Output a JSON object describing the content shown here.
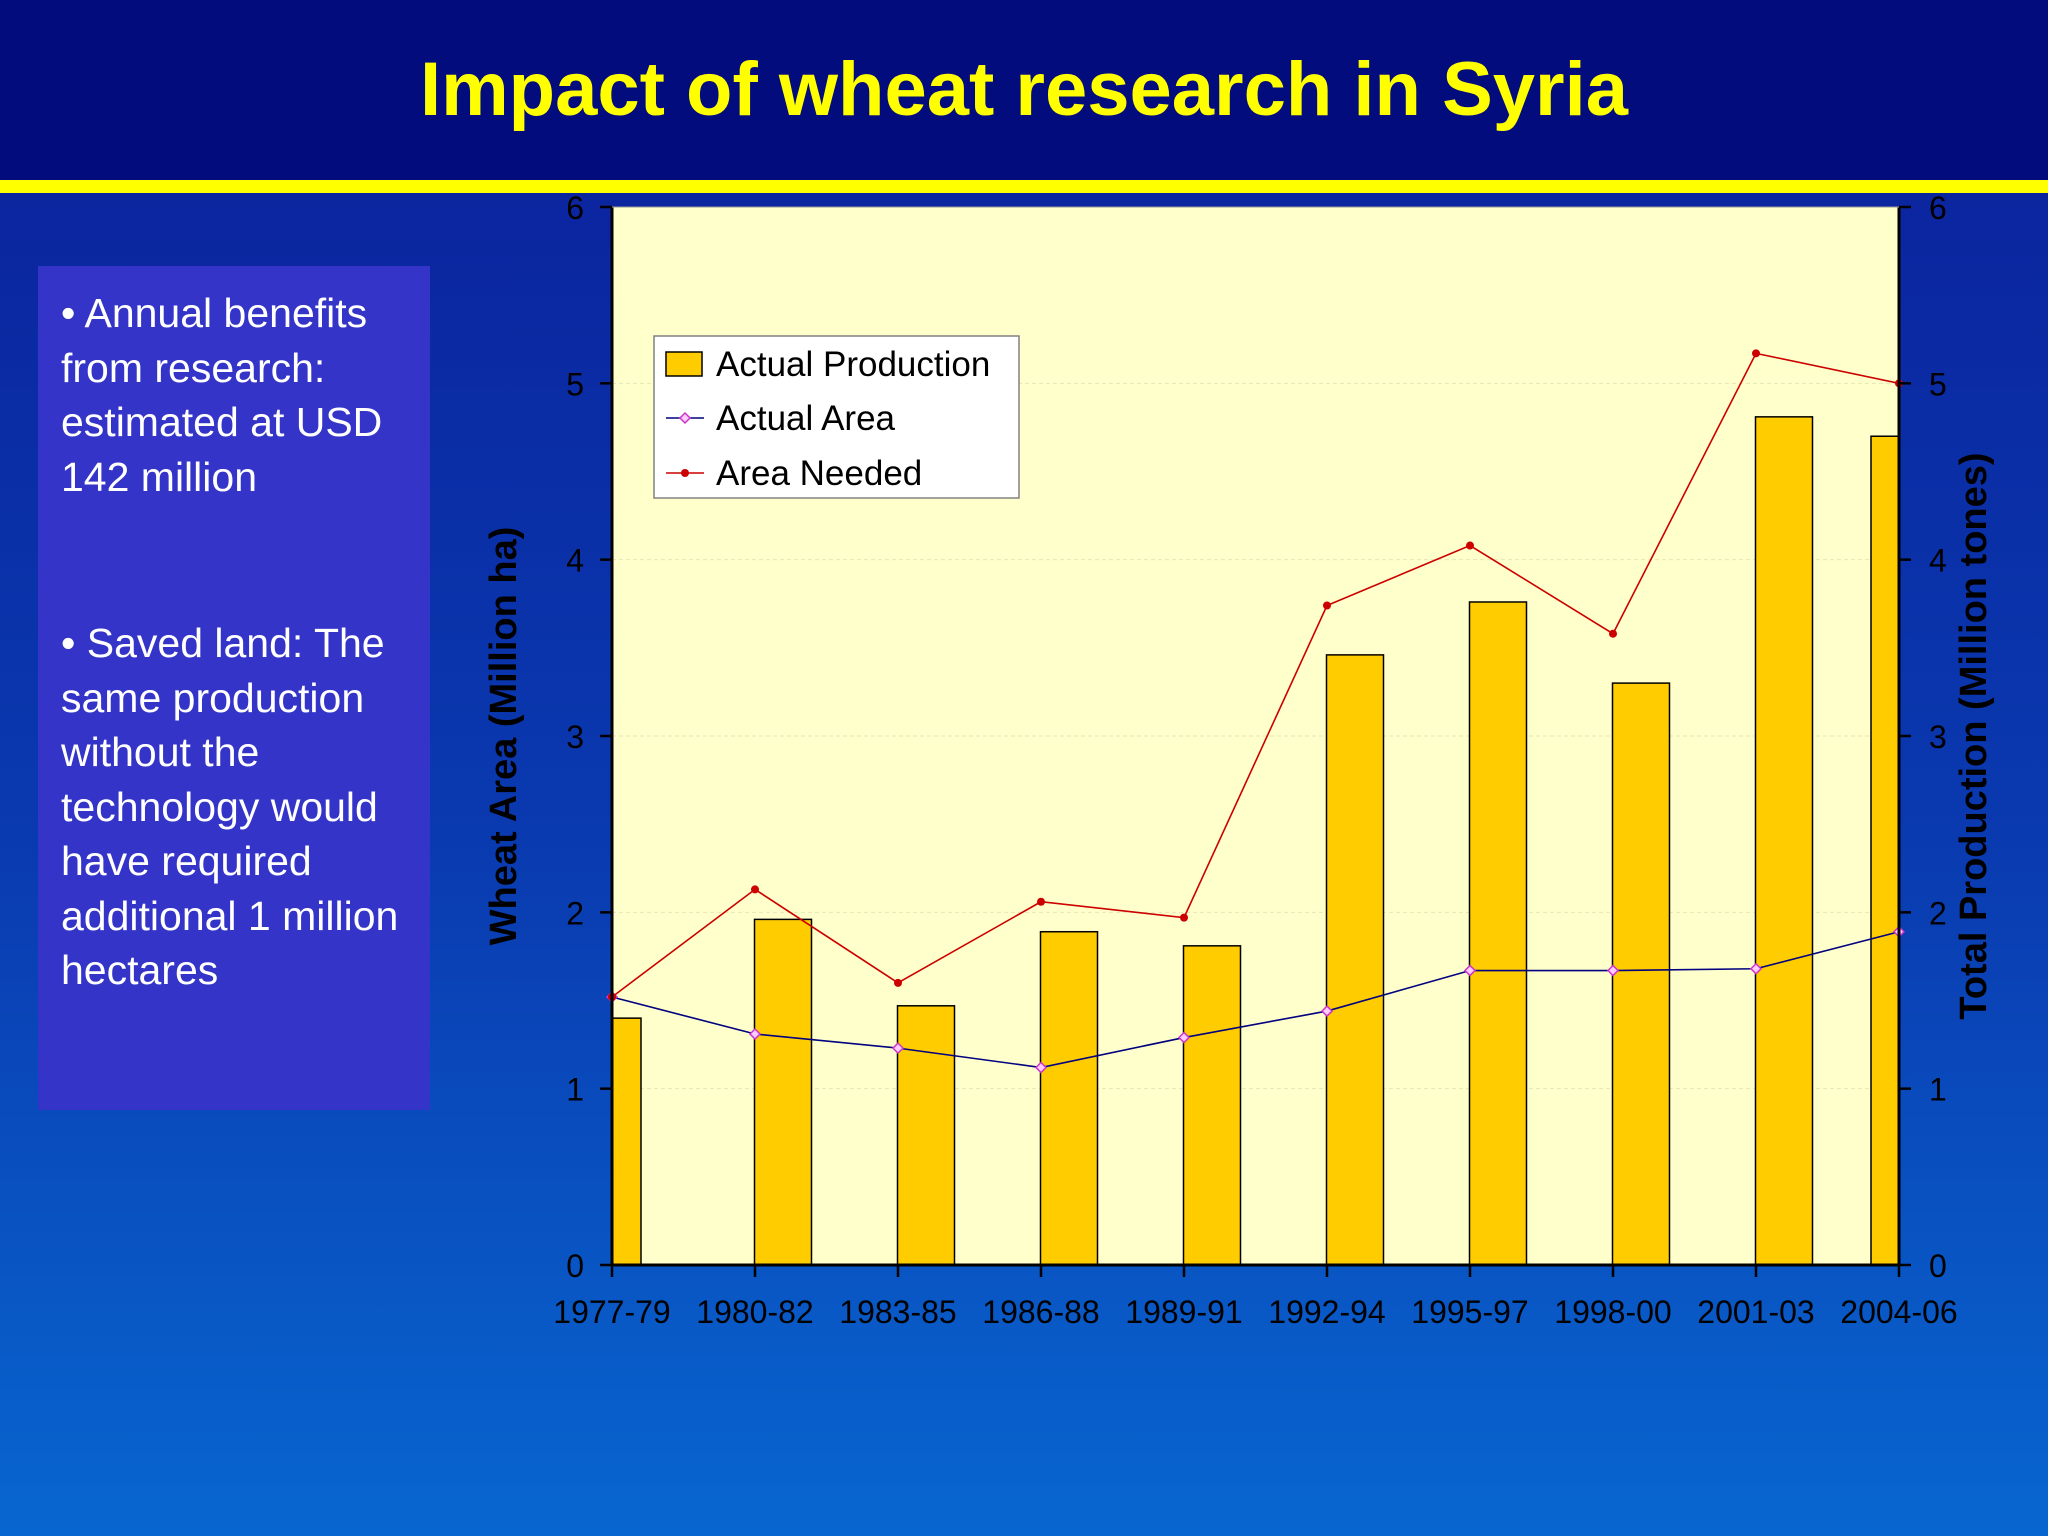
{
  "slide": {
    "title": "Impact of wheat research in Syria",
    "bullets": [
      "• Annual benefits from research: estimated at USD 142 million",
      "• Saved land: The same production without the technology would have required additional 1 million hectares"
    ]
  },
  "colors": {
    "header": "#030c7c",
    "title": "#ffff00",
    "rule": "#ffff00",
    "textbox": "#3434c8",
    "plot_bg": "#ffffcc",
    "bar": "#ffcc00",
    "actual_area_line": "#000080",
    "actual_area_marker": "#cc33cc",
    "area_needed": "#cc0000"
  },
  "chart_data": {
    "type": "bar",
    "categories": [
      "1977-79",
      "1980-82",
      "1983-85",
      "1986-88",
      "1989-91",
      "1992-94",
      "1995-97",
      "1998-00",
      "2001-03",
      "2004-06"
    ],
    "ylabel": "Wheat Area (Million ha)",
    "y2label": "Total Production (Million tones)",
    "ylim": [
      0,
      6
    ],
    "y2lim": [
      0,
      6
    ],
    "yticks": [
      "0",
      "1",
      "2",
      "3",
      "4",
      "5",
      "6"
    ],
    "legend_position": "top-left",
    "series": [
      {
        "name": "Actual Production",
        "type": "bar",
        "axis": "right",
        "values": [
          1.4,
          1.96,
          1.47,
          1.89,
          1.81,
          3.46,
          3.76,
          3.3,
          4.81,
          4.7
        ]
      },
      {
        "name": "Actual Area",
        "type": "line",
        "axis": "left",
        "values": [
          1.52,
          1.31,
          1.23,
          1.12,
          1.29,
          1.44,
          1.67,
          1.67,
          1.68,
          1.89
        ]
      },
      {
        "name": "Area Needed",
        "type": "line",
        "axis": "left",
        "values": [
          1.52,
          2.13,
          1.6,
          2.06,
          1.97,
          3.74,
          4.08,
          3.58,
          5.17,
          5.0
        ]
      }
    ]
  }
}
